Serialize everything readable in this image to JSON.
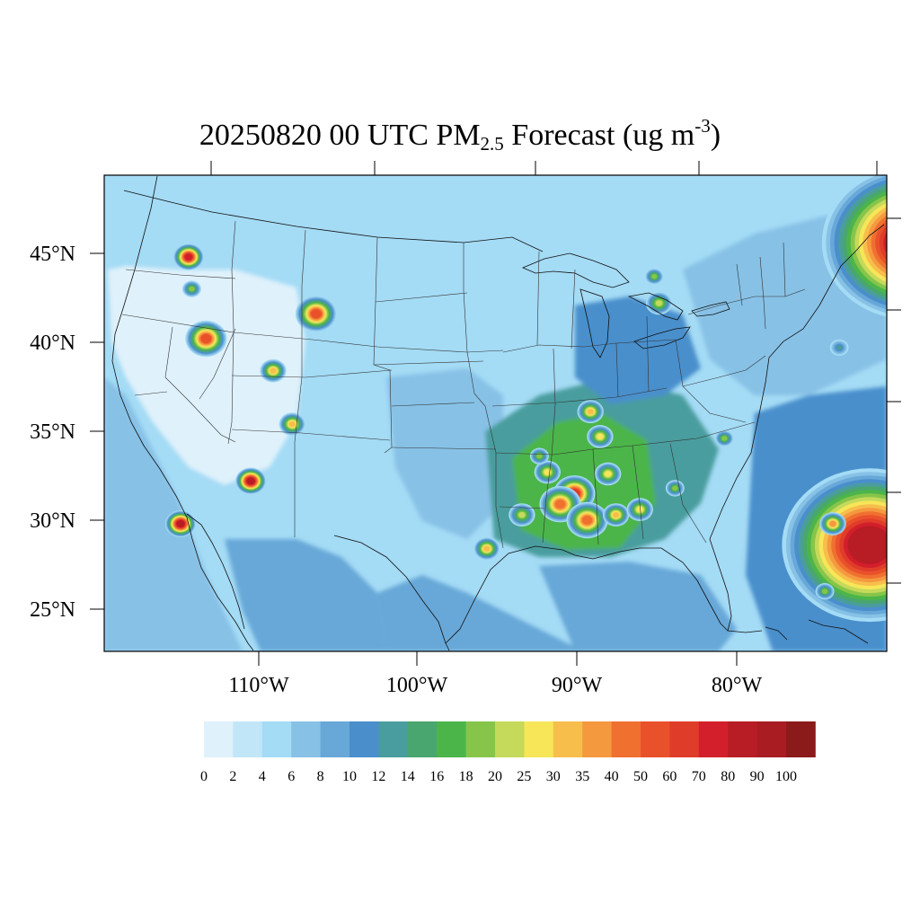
{
  "title": {
    "prefix": "20250820 00 UTC PM",
    "subscript": "2.5",
    "middle": " Forecast (ug m",
    "superscript": "-3",
    "suffix": ")"
  },
  "map": {
    "lat_labels": [
      "45°N",
      "40°N",
      "35°N",
      "30°N",
      "25°N"
    ],
    "lon_labels": [
      "110°W",
      "100°W",
      "90°W",
      "80°W"
    ]
  },
  "colorbar": {
    "colors": [
      "#dff1fb",
      "#c1e6f8",
      "#a4dbf5",
      "#87c1e6",
      "#68a8d8",
      "#4a8fcc",
      "#4a9d9e",
      "#4aa66f",
      "#4cb54a",
      "#86c54a",
      "#c5d95a",
      "#f6e658",
      "#f7be4c",
      "#f5993f",
      "#f07030",
      "#e9512b",
      "#df3c2a",
      "#d31f2b",
      "#b81c25",
      "#a81c22",
      "#8b1a1a"
    ],
    "labels": [
      "0",
      "2",
      "4",
      "6",
      "8",
      "10",
      "12",
      "14",
      "16",
      "18",
      "20",
      "25",
      "30",
      "35",
      "40",
      "50",
      "60",
      "70",
      "80",
      "90",
      "100"
    ]
  },
  "chart_data": {
    "type": "heatmap",
    "title": "20250820 00 UTC PM2.5 Forecast (ug m-3)",
    "x_axis": {
      "label": "",
      "ticks": [
        "110°W",
        "100°W",
        "90°W",
        "80°W"
      ]
    },
    "y_axis": {
      "label": "",
      "ticks": [
        "45°N",
        "40°N",
        "35°N",
        "30°N",
        "25°N"
      ]
    },
    "value_scale": {
      "levels": [
        0,
        2,
        4,
        6,
        8,
        10,
        12,
        14,
        16,
        18,
        20,
        25,
        30,
        35,
        40,
        50,
        60,
        70,
        80,
        90,
        100
      ],
      "units": "ug m-3"
    },
    "background_value": 3,
    "hotspots": [
      {
        "lon": -114.4,
        "lat": 44.8,
        "value": 70
      },
      {
        "lon": -113.3,
        "lat": 40.2,
        "value": 50
      },
      {
        "lon": -114.2,
        "lat": 43.0,
        "value": 18
      },
      {
        "lon": -106.4,
        "lat": 41.6,
        "value": 50
      },
      {
        "lon": -109.1,
        "lat": 38.4,
        "value": 30
      },
      {
        "lon": -107.9,
        "lat": 35.4,
        "value": 30
      },
      {
        "lon": -110.5,
        "lat": 32.2,
        "value": 80
      },
      {
        "lon": -114.9,
        "lat": 29.8,
        "value": 80
      },
      {
        "lon": -69.2,
        "lat": 45.6,
        "value": 80
      },
      {
        "lon": -84.9,
        "lat": 42.2,
        "value": 20
      },
      {
        "lon": -85.2,
        "lat": 43.7,
        "value": 18
      },
      {
        "lon": -89.2,
        "lat": 36.1,
        "value": 30
      },
      {
        "lon": -88.6,
        "lat": 34.7,
        "value": 25
      },
      {
        "lon": -91.9,
        "lat": 32.7,
        "value": 25
      },
      {
        "lon": -90.2,
        "lat": 31.5,
        "value": 60
      },
      {
        "lon": -91.1,
        "lat": 30.9,
        "value": 40
      },
      {
        "lon": -89.4,
        "lat": 30.0,
        "value": 40
      },
      {
        "lon": -87.6,
        "lat": 30.3,
        "value": 30
      },
      {
        "lon": -86.1,
        "lat": 30.6,
        "value": 25
      },
      {
        "lon": -93.5,
        "lat": 30.3,
        "value": 20
      },
      {
        "lon": -95.7,
        "lat": 28.4,
        "value": 30
      },
      {
        "lon": -83.9,
        "lat": 31.8,
        "value": 18
      },
      {
        "lon": -80.8,
        "lat": 34.6,
        "value": 18
      },
      {
        "lon": -73.6,
        "lat": 39.7,
        "value": 12
      },
      {
        "lon": -71.7,
        "lat": 28.6,
        "value": 80
      },
      {
        "lon": -74.0,
        "lat": 29.8,
        "value": 35
      },
      {
        "lon": -74.5,
        "lat": 26.0,
        "value": 18
      },
      {
        "lon": -92.4,
        "lat": 33.6,
        "value": 18
      },
      {
        "lon": -88.1,
        "lat": 32.6,
        "value": 25
      }
    ]
  }
}
